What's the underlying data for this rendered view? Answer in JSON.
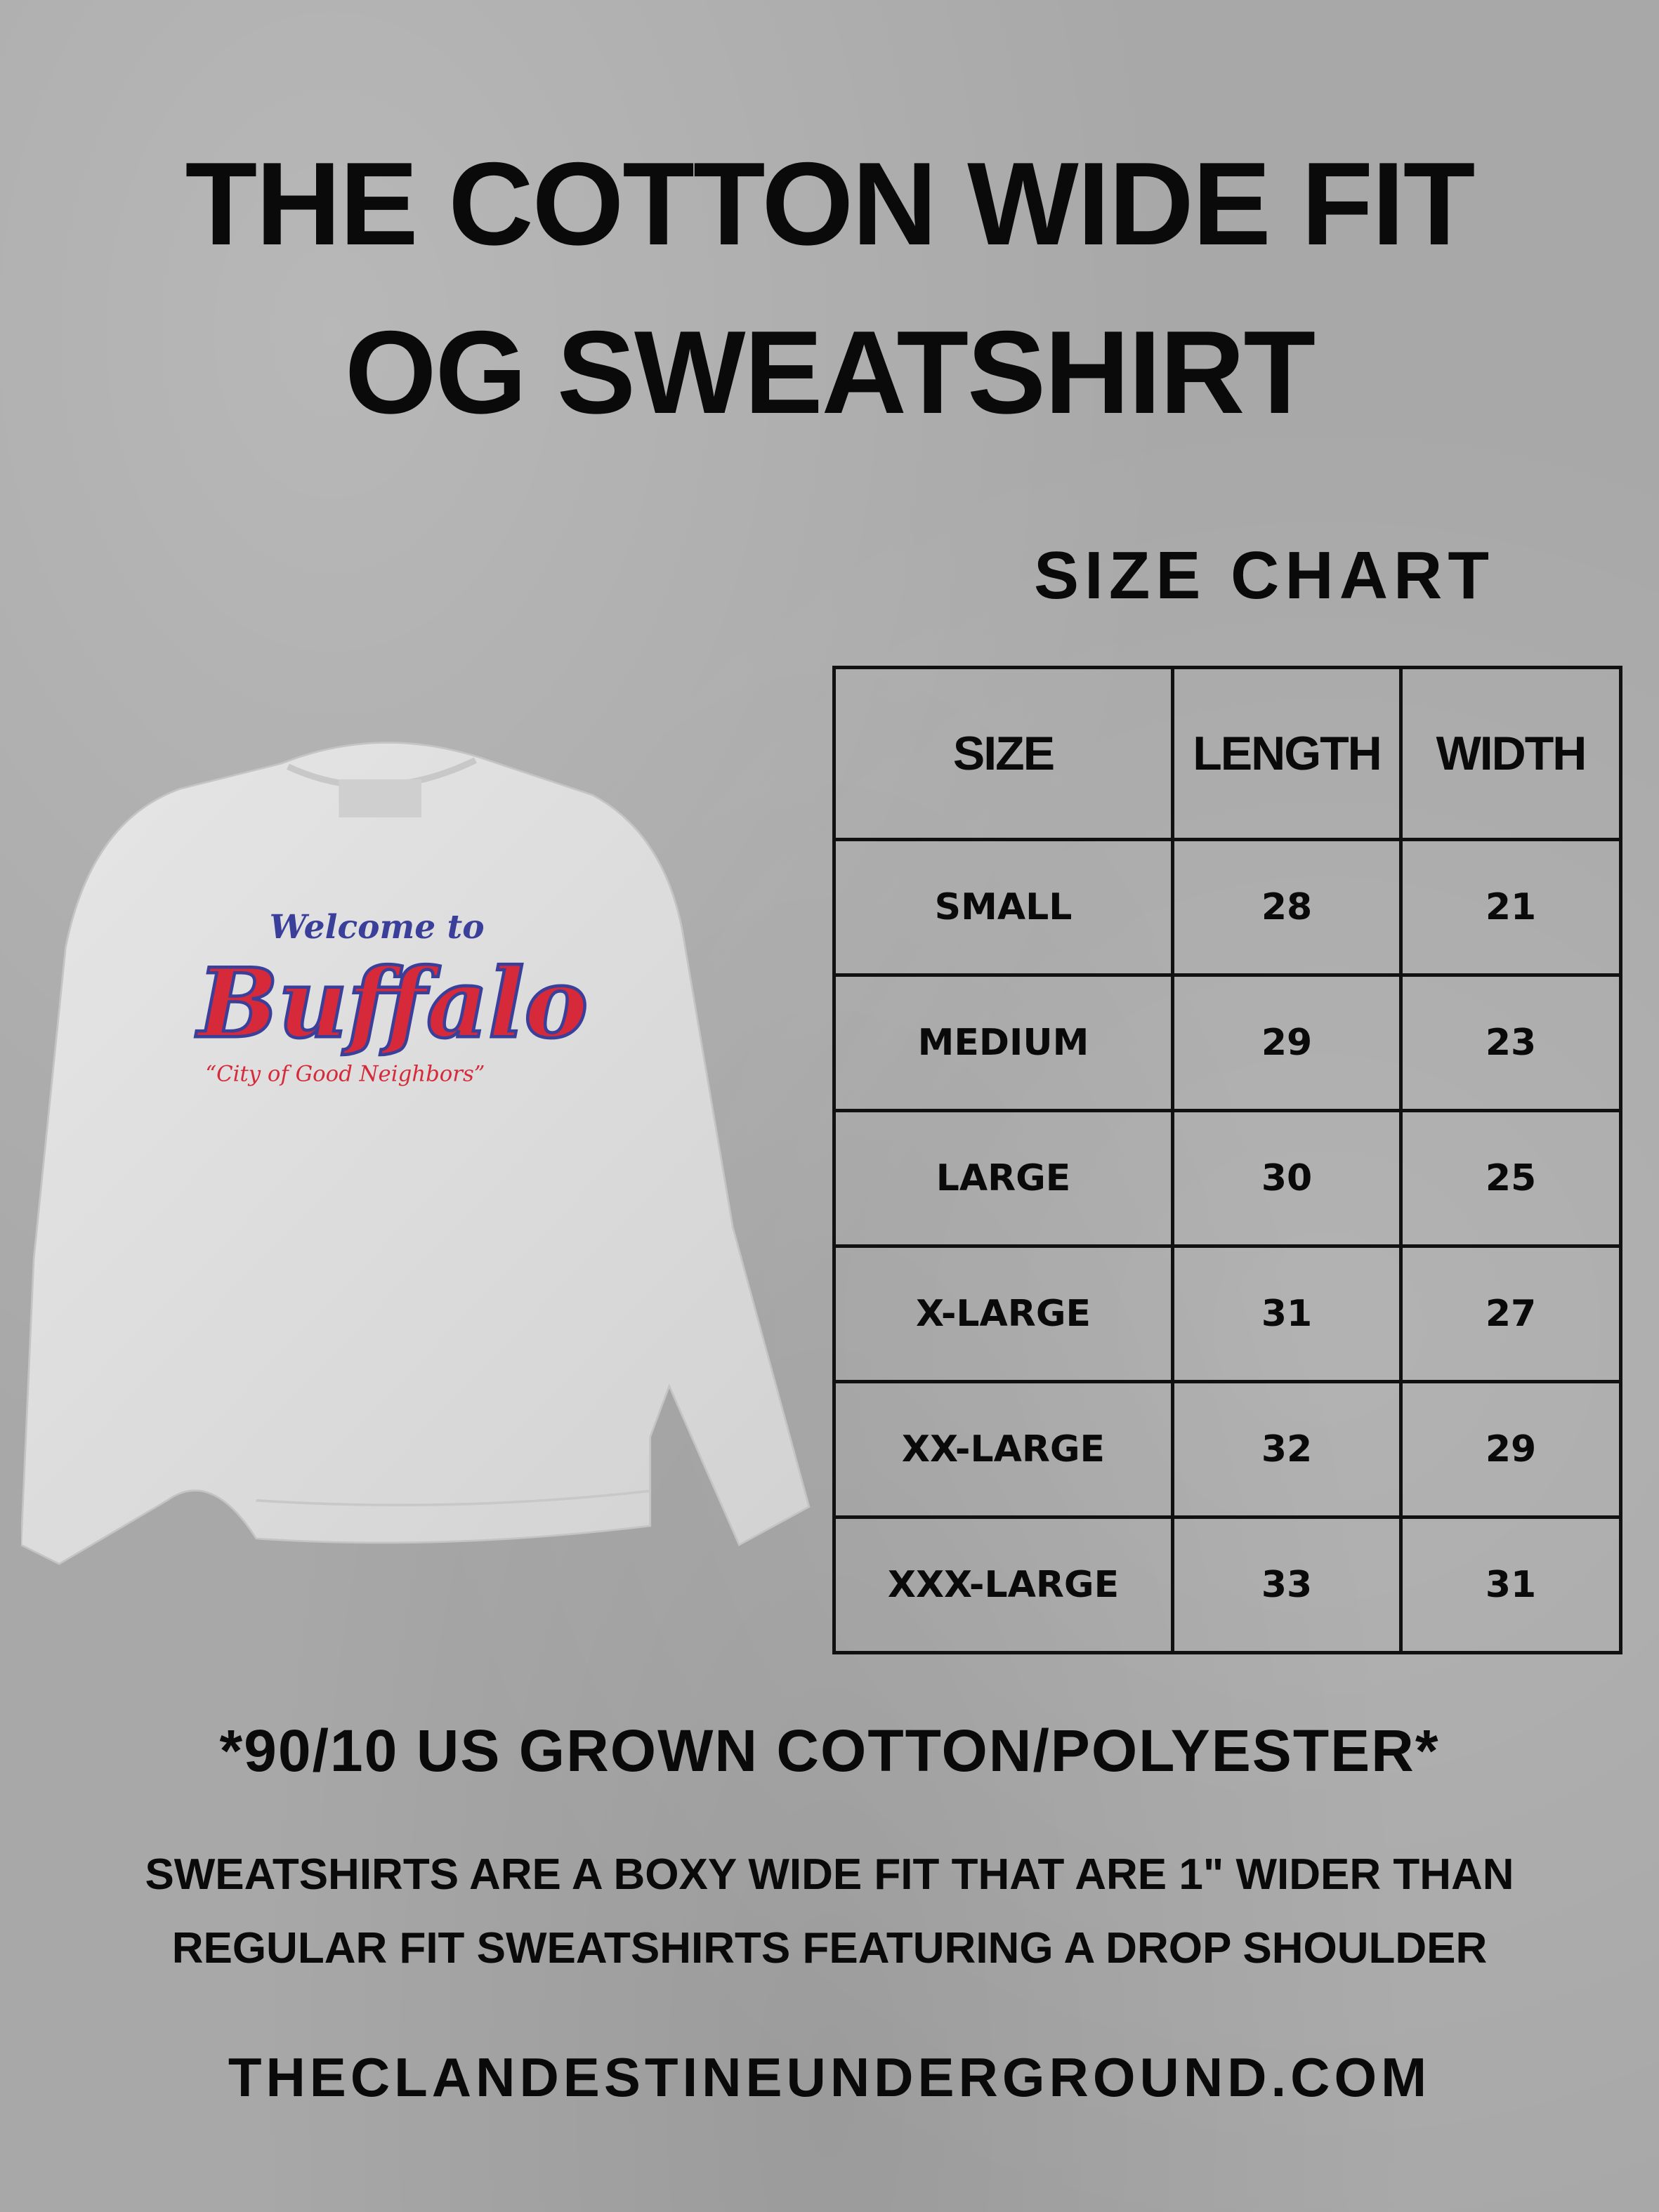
{
  "title": {
    "line1": "THE COTTON WIDE FIT",
    "line2": "OG SWEATSHIRT"
  },
  "size_chart_heading": "SIZE CHART",
  "table": {
    "headers": [
      "SIZE",
      "LENGTH",
      "WIDTH"
    ],
    "rows": [
      [
        "SMALL",
        "28",
        "21"
      ],
      [
        "MEDIUM",
        "29",
        "23"
      ],
      [
        "LARGE",
        "30",
        "25"
      ],
      [
        "X-LARGE",
        "31",
        "27"
      ],
      [
        "XX-LARGE",
        "32",
        "29"
      ],
      [
        "XXX-LARGE",
        "33",
        "31"
      ]
    ]
  },
  "product_image": {
    "logo_text": {
      "top": "Welcome to",
      "main": "Buffalo",
      "tagline": "“City of Good Neighbors”"
    },
    "colors": {
      "fabric": "#dedede",
      "logo_red": "#d62a3a",
      "logo_blue": "#3a3f9a"
    }
  },
  "material": "*90/10 US GROWN COTTON/POLYESTER*",
  "description": {
    "line1": "SWEATSHIRTS ARE A BOXY WIDE FIT THAT ARE 1\" WIDER THAN",
    "line2": "REGULAR FIT SWEATSHIRTS FEATURING A DROP SHOULDER"
  },
  "website": "THECLANDESTINEUNDERGROUND.COM"
}
